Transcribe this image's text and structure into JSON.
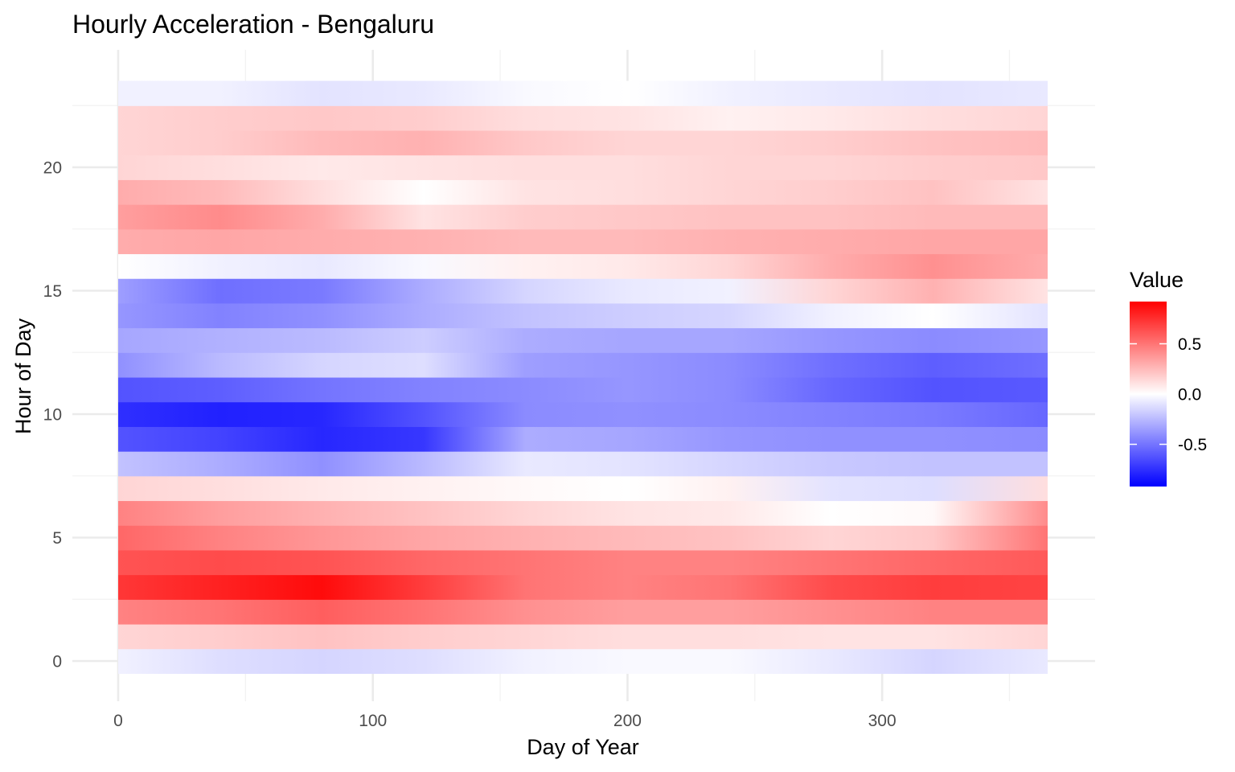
{
  "chart_data": {
    "type": "heatmap",
    "title": "Hourly Acceleration - Bengaluru",
    "xlabel": "Day of Year",
    "ylabel": "Hour of Day",
    "xlim": [
      0,
      365
    ],
    "ylim": [
      0,
      23
    ],
    "x_ticks": [
      0,
      100,
      200,
      300
    ],
    "y_ticks": [
      0,
      5,
      10,
      15,
      20
    ],
    "grid": true,
    "legend": {
      "title": "Value",
      "placement": "right",
      "ticks": [
        0.5,
        0.0,
        -0.5
      ],
      "tick_labels": [
        "0.5",
        "0.0",
        "-0.5"
      ],
      "min": -0.92,
      "max": 0.92,
      "low_color": "#0000ff",
      "mid_color": "#ffffff",
      "high_color": "#ff0000"
    },
    "day_knots": [
      0,
      40,
      80,
      120,
      160,
      200,
      240,
      280,
      320,
      365
    ],
    "hours": [
      {
        "hour": 0,
        "values": [
          -0.05,
          -0.12,
          -0.15,
          -0.12,
          -0.05,
          -0.02,
          -0.02,
          -0.08,
          -0.15,
          -0.08
        ]
      },
      {
        "hour": 1,
        "values": [
          0.15,
          0.18,
          0.22,
          0.18,
          0.15,
          0.12,
          0.12,
          0.1,
          0.1,
          0.15
        ]
      },
      {
        "hour": 2,
        "values": [
          0.45,
          0.5,
          0.58,
          0.5,
          0.4,
          0.35,
          0.35,
          0.4,
          0.45,
          0.45
        ]
      },
      {
        "hour": 3,
        "values": [
          0.72,
          0.8,
          0.88,
          0.7,
          0.5,
          0.45,
          0.5,
          0.65,
          0.7,
          0.68
        ]
      },
      {
        "hour": 4,
        "values": [
          0.62,
          0.65,
          0.62,
          0.55,
          0.5,
          0.45,
          0.45,
          0.5,
          0.55,
          0.6
        ]
      },
      {
        "hour": 5,
        "values": [
          0.55,
          0.45,
          0.38,
          0.32,
          0.28,
          0.25,
          0.22,
          0.15,
          0.2,
          0.5
        ]
      },
      {
        "hour": 6,
        "values": [
          0.45,
          0.35,
          0.28,
          0.22,
          0.15,
          0.1,
          0.08,
          0.0,
          0.02,
          0.42
        ]
      },
      {
        "hour": 7,
        "values": [
          0.15,
          0.12,
          0.08,
          0.05,
          0.02,
          0.0,
          0.05,
          -0.1,
          -0.12,
          0.12
        ]
      },
      {
        "hour": 8,
        "values": [
          -0.22,
          -0.3,
          -0.4,
          -0.25,
          -0.08,
          -0.1,
          -0.15,
          -0.2,
          -0.22,
          -0.22
        ]
      },
      {
        "hour": 9,
        "values": [
          -0.62,
          -0.68,
          -0.78,
          -0.72,
          -0.3,
          -0.32,
          -0.38,
          -0.4,
          -0.4,
          -0.42
        ]
      },
      {
        "hour": 10,
        "values": [
          -0.75,
          -0.8,
          -0.78,
          -0.62,
          -0.42,
          -0.4,
          -0.42,
          -0.45,
          -0.48,
          -0.55
        ]
      },
      {
        "hour": 11,
        "values": [
          -0.62,
          -0.58,
          -0.5,
          -0.45,
          -0.42,
          -0.38,
          -0.42,
          -0.55,
          -0.62,
          -0.6
        ]
      },
      {
        "hour": 12,
        "values": [
          -0.4,
          -0.25,
          -0.15,
          -0.12,
          -0.35,
          -0.38,
          -0.42,
          -0.52,
          -0.58,
          -0.52
        ]
      },
      {
        "hour": 13,
        "values": [
          -0.32,
          -0.28,
          -0.25,
          -0.18,
          -0.3,
          -0.32,
          -0.32,
          -0.38,
          -0.42,
          -0.38
        ]
      },
      {
        "hour": 14,
        "values": [
          -0.38,
          -0.45,
          -0.4,
          -0.3,
          -0.22,
          -0.18,
          -0.15,
          -0.05,
          0.0,
          -0.1
        ]
      },
      {
        "hour": 15,
        "values": [
          -0.35,
          -0.52,
          -0.48,
          -0.3,
          -0.15,
          -0.08,
          -0.05,
          0.15,
          0.28,
          0.1
        ]
      },
      {
        "hour": 16,
        "values": [
          0.0,
          -0.05,
          -0.08,
          -0.02,
          0.05,
          0.08,
          0.15,
          0.3,
          0.4,
          0.3
        ]
      },
      {
        "hour": 17,
        "values": [
          0.3,
          0.32,
          0.3,
          0.28,
          0.25,
          0.25,
          0.28,
          0.3,
          0.32,
          0.32
        ]
      },
      {
        "hour": 18,
        "values": [
          0.35,
          0.42,
          0.3,
          0.1,
          0.18,
          0.2,
          0.22,
          0.22,
          0.25,
          0.25
        ]
      },
      {
        "hour": 19,
        "values": [
          0.3,
          0.25,
          0.12,
          0.0,
          0.1,
          0.12,
          0.15,
          0.18,
          0.22,
          0.1
        ]
      },
      {
        "hour": 20,
        "values": [
          0.15,
          0.12,
          0.08,
          0.1,
          0.12,
          0.12,
          0.15,
          0.15,
          0.18,
          0.2
        ]
      },
      {
        "hour": 21,
        "values": [
          0.15,
          0.18,
          0.25,
          0.28,
          0.2,
          0.15,
          0.15,
          0.18,
          0.22,
          0.25
        ]
      },
      {
        "hour": 22,
        "values": [
          0.15,
          0.18,
          0.2,
          0.18,
          0.12,
          0.1,
          0.05,
          0.08,
          0.12,
          0.15
        ]
      },
      {
        "hour": 23,
        "values": [
          -0.05,
          -0.05,
          -0.1,
          -0.08,
          -0.02,
          0.0,
          -0.05,
          -0.08,
          -0.1,
          -0.08
        ]
      }
    ]
  }
}
